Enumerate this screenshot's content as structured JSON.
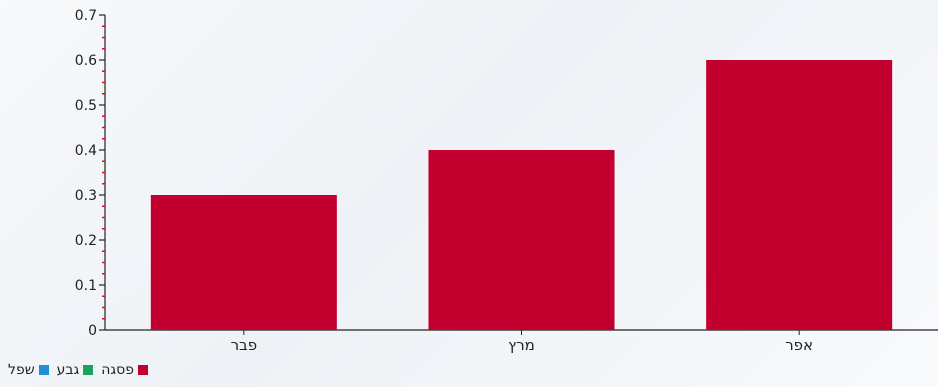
{
  "chart_data": {
    "type": "bar",
    "categories": [
      "פבר",
      "מרץ",
      "אפר"
    ],
    "series": [
      {
        "name": "פסגה",
        "values": [
          0.3,
          0.4,
          0.6
        ],
        "color": "#c20030"
      }
    ],
    "ylim": [
      0,
      0.7
    ],
    "yticks": [
      0,
      0.1,
      0.2,
      0.3,
      0.4,
      0.5,
      0.6,
      0.7
    ],
    "ytick_labels": [
      "0",
      "0.1",
      "0.2",
      "0.3",
      "0.4",
      "0.5",
      "0.6",
      "0.7"
    ],
    "grid": false,
    "legend_position": "bottom-left",
    "legend": [
      {
        "label": "פסגה",
        "color": "#c20030"
      },
      {
        "label": "גבע",
        "color": "#1aa260"
      },
      {
        "label": "שפל",
        "color": "#1f8fd6"
      }
    ]
  }
}
